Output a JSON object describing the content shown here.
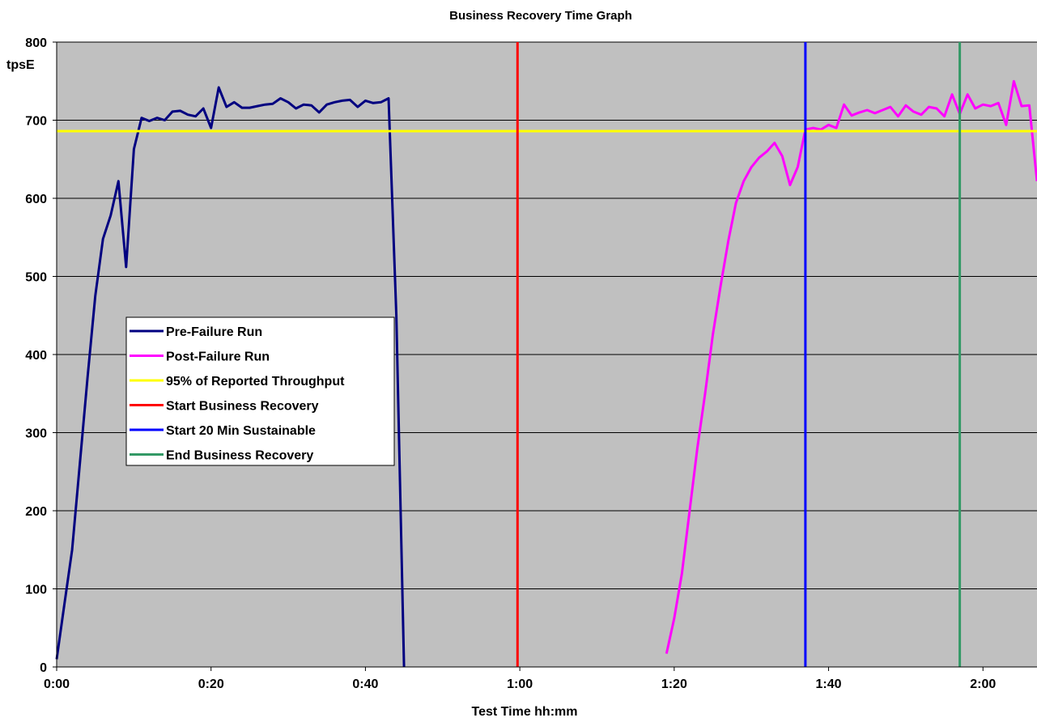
{
  "chart_data": {
    "type": "line",
    "title": "Business Recovery Time Graph",
    "xlabel": "Test Time hh:mm",
    "ylabel": "tpsE",
    "xlim": [
      0,
      127
    ],
    "ylim": [
      0,
      800
    ],
    "x_ticks": [
      {
        "value": 0,
        "label": "0:00"
      },
      {
        "value": 20,
        "label": "0:20"
      },
      {
        "value": 40,
        "label": "0:40"
      },
      {
        "value": 60,
        "label": "1:00"
      },
      {
        "value": 80,
        "label": "1:20"
      },
      {
        "value": 100,
        "label": "1:40"
      },
      {
        "value": 120,
        "label": "2:00"
      }
    ],
    "y_ticks": [
      0,
      100,
      200,
      300,
      400,
      500,
      600,
      700,
      800
    ],
    "grid": "horizontal",
    "plot_background": "#C0C0C0",
    "legend_position": "left-middle",
    "series": [
      {
        "name": "Pre-Failure Run",
        "color": "#000080",
        "x": [
          0,
          1,
          2,
          3,
          4,
          5,
          6,
          7,
          8,
          9,
          10,
          11,
          12,
          13,
          14,
          15,
          16,
          17,
          18,
          19,
          20,
          21,
          22,
          23,
          24,
          25,
          26,
          27,
          28,
          29,
          30,
          31,
          32,
          33,
          34,
          35,
          36,
          37,
          38,
          39,
          40,
          41,
          42,
          43,
          44,
          45
        ],
        "y": [
          10,
          80,
          150,
          260,
          370,
          475,
          548,
          578,
          622,
          512,
          663,
          703,
          699,
          703,
          700,
          711,
          712,
          707,
          705,
          715,
          690,
          742,
          717,
          723,
          716,
          716,
          718,
          720,
          721,
          728,
          723,
          715,
          720,
          719,
          710,
          720,
          723,
          725,
          726,
          717,
          725,
          722,
          723,
          728,
          450,
          0
        ]
      },
      {
        "name": "Post-Failure Run",
        "color": "#FF00FF",
        "x": [
          79,
          80,
          81,
          82,
          83,
          84,
          85,
          86,
          87,
          88,
          89,
          90,
          91,
          92,
          93,
          94,
          95,
          96,
          97,
          98,
          99,
          100,
          101,
          102,
          103,
          104,
          105,
          106,
          107,
          108,
          109,
          110,
          111,
          112,
          113,
          114,
          115,
          116,
          117,
          118,
          119,
          120,
          121,
          122,
          123,
          124,
          125,
          126,
          127
        ],
        "y": [
          17,
          62,
          120,
          200,
          280,
          350,
          425,
          487,
          545,
          594,
          622,
          640,
          652,
          660,
          671,
          654,
          617,
          640,
          688,
          690,
          688,
          694,
          690,
          720,
          706,
          710,
          713,
          709,
          713,
          717,
          705,
          719,
          711,
          707,
          717,
          715,
          705,
          733,
          708,
          733,
          715,
          720,
          718,
          722,
          694,
          750,
          718,
          719,
          622
        ]
      },
      {
        "name": "95% of Reported Throughput",
        "color": "#FFFF00",
        "x": [
          0,
          127
        ],
        "y": [
          686,
          686
        ]
      },
      {
        "name": "Start Business Recovery",
        "color": "#FF0000",
        "x": [
          59.7,
          59.7
        ],
        "y": [
          0,
          800
        ]
      },
      {
        "name": "Start 20 Min Sustainable",
        "color": "#0000FF",
        "x": [
          97,
          97
        ],
        "y": [
          0,
          800
        ]
      },
      {
        "name": "End Business Recovery",
        "color": "#339966",
        "x": [
          117,
          117
        ],
        "y": [
          0,
          800
        ]
      }
    ]
  }
}
